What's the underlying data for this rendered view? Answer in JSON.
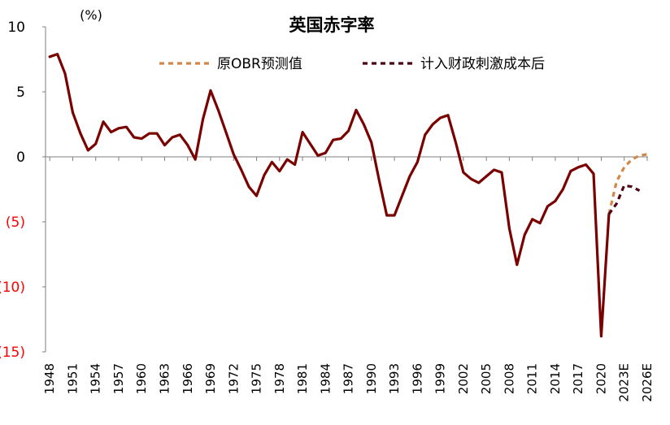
{
  "chart_data": {
    "type": "line",
    "title": "英国赤字率",
    "unit_label": "(%)",
    "ylim": [
      -15,
      10
    ],
    "y_ticks": [
      {
        "value": 10,
        "label": "10",
        "color": "#000000"
      },
      {
        "value": 5,
        "label": "5",
        "color": "#000000"
      },
      {
        "value": 0,
        "label": "0",
        "color": "#000000"
      },
      {
        "value": -5,
        "label": "(5)",
        "color": "#ff0000"
      },
      {
        "value": -10,
        "label": "(10)",
        "color": "#ff0000"
      },
      {
        "value": -15,
        "label": "(15)",
        "color": "#ff0000"
      }
    ],
    "x_tick_labels": [
      "1948",
      "1951",
      "1954",
      "1957",
      "1960",
      "1963",
      "1966",
      "1969",
      "1972",
      "1975",
      "1978",
      "1981",
      "1984",
      "1987",
      "1990",
      "1993",
      "1996",
      "1999",
      "2002",
      "2005",
      "2008",
      "2011",
      "2014",
      "2017",
      "2020",
      "2023E",
      "2026E"
    ],
    "x_tick_years": [
      1948,
      1951,
      1954,
      1957,
      1960,
      1963,
      1966,
      1969,
      1972,
      1975,
      1978,
      1981,
      1984,
      1987,
      1990,
      1993,
      1996,
      1999,
      2002,
      2005,
      2008,
      2011,
      2014,
      2017,
      2020,
      2023,
      2026
    ],
    "x_range": [
      1948,
      2026
    ],
    "series": [
      {
        "name": "",
        "color": "#7a0000",
        "dashed": false,
        "points": [
          [
            1948,
            7.7
          ],
          [
            1949,
            7.9
          ],
          [
            1950,
            6.4
          ],
          [
            1951,
            3.4
          ],
          [
            1952,
            1.8
          ],
          [
            1953,
            0.5
          ],
          [
            1954,
            1.0
          ],
          [
            1955,
            2.7
          ],
          [
            1956,
            1.9
          ],
          [
            1957,
            2.2
          ],
          [
            1958,
            2.3
          ],
          [
            1959,
            1.5
          ],
          [
            1960,
            1.4
          ],
          [
            1961,
            1.8
          ],
          [
            1962,
            1.8
          ],
          [
            1963,
            0.9
          ],
          [
            1964,
            1.5
          ],
          [
            1965,
            1.7
          ],
          [
            1966,
            0.9
          ],
          [
            1967,
            -0.2
          ],
          [
            1968,
            2.9
          ],
          [
            1969,
            5.1
          ],
          [
            1970,
            3.6
          ],
          [
            1971,
            1.9
          ],
          [
            1972,
            0.2
          ],
          [
            1973,
            -1.0
          ],
          [
            1974,
            -2.3
          ],
          [
            1975,
            -3.0
          ],
          [
            1976,
            -1.4
          ],
          [
            1977,
            -0.4
          ],
          [
            1978,
            -1.1
          ],
          [
            1979,
            -0.2
          ],
          [
            1980,
            -0.6
          ],
          [
            1981,
            1.9
          ],
          [
            1982,
            1.0
          ],
          [
            1983,
            0.1
          ],
          [
            1984,
            0.3
          ],
          [
            1985,
            1.3
          ],
          [
            1986,
            1.4
          ],
          [
            1987,
            2.0
          ],
          [
            1988,
            3.6
          ],
          [
            1989,
            2.5
          ],
          [
            1990,
            1.1
          ],
          [
            1991,
            -1.8
          ],
          [
            1992,
            -4.5
          ],
          [
            1993,
            -4.5
          ],
          [
            1994,
            -3.0
          ],
          [
            1995,
            -1.5
          ],
          [
            1996,
            -0.4
          ],
          [
            1997,
            1.7
          ],
          [
            1998,
            2.5
          ],
          [
            1999,
            3.0
          ],
          [
            2000,
            3.2
          ],
          [
            2001,
            1.1
          ],
          [
            2002,
            -1.2
          ],
          [
            2003,
            -1.7
          ],
          [
            2004,
            -2.0
          ],
          [
            2005,
            -1.5
          ],
          [
            2006,
            -1.0
          ],
          [
            2007,
            -1.2
          ],
          [
            2008,
            -5.5
          ],
          [
            2009,
            -8.3
          ],
          [
            2010,
            -6.0
          ],
          [
            2011,
            -4.8
          ],
          [
            2012,
            -5.1
          ],
          [
            2013,
            -3.8
          ],
          [
            2014,
            -3.4
          ],
          [
            2015,
            -2.5
          ],
          [
            2016,
            -1.1
          ],
          [
            2017,
            -0.8
          ],
          [
            2018,
            -0.6
          ],
          [
            2019,
            -1.3
          ],
          [
            2020,
            -13.8
          ],
          [
            2021,
            -4.4
          ]
        ]
      },
      {
        "name": "原OBR预测值",
        "color": "#d08848",
        "dashed": true,
        "points": [
          [
            2021,
            -4.4
          ],
          [
            2022,
            -1.9
          ],
          [
            2023,
            -0.8
          ],
          [
            2024,
            -0.2
          ],
          [
            2025,
            0.1
          ],
          [
            2026,
            0.2
          ]
        ]
      },
      {
        "name": "计入财政刺激成本后",
        "color": "#4d0010",
        "dashed": true,
        "points": [
          [
            2021,
            -4.4
          ],
          [
            2022,
            -3.6
          ],
          [
            2023,
            -2.2
          ],
          [
            2024,
            -2.3
          ],
          [
            2025,
            -2.6
          ]
        ]
      }
    ],
    "legend": [
      {
        "label": "原OBR预测值",
        "color": "#d08848"
      },
      {
        "label": "计入财政刺激成本后",
        "color": "#4d0010"
      }
    ],
    "legend_position": "top-right",
    "grid": false
  }
}
